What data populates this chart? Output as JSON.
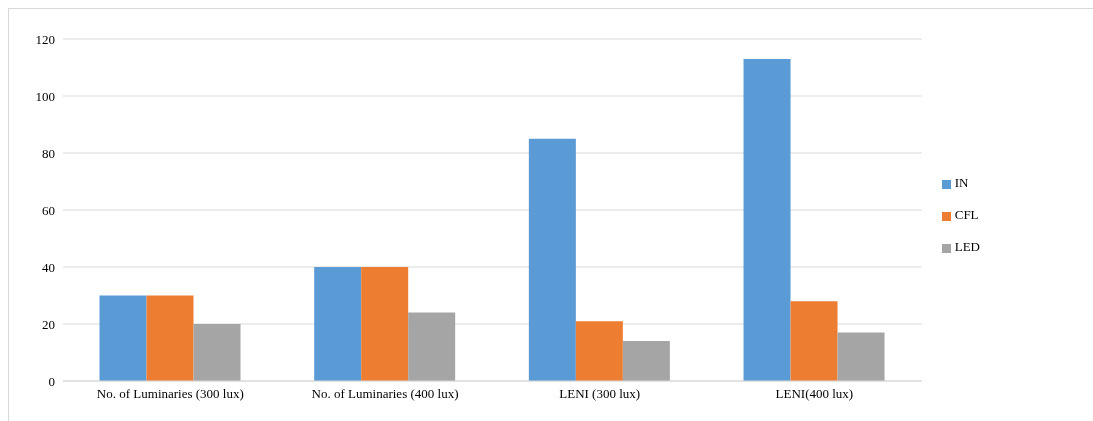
{
  "chart_data": {
    "type": "bar",
    "categories": [
      "No. of Luminaries (300 lux)",
      "No. of Luminaries (400 lux)",
      "LENI (300 lux)",
      "LENI(400 lux)"
    ],
    "series": [
      {
        "name": "IN",
        "color": "#5b9bd5",
        "values": [
          30,
          40,
          85,
          113
        ]
      },
      {
        "name": "CFL",
        "color": "#ed7d31",
        "values": [
          30,
          40,
          21,
          28
        ]
      },
      {
        "name": "LED",
        "color": "#a5a5a5",
        "values": [
          20,
          24,
          14,
          17
        ]
      }
    ],
    "ylim": [
      0,
      120
    ],
    "yticks": [
      0,
      20,
      40,
      60,
      80,
      100,
      120
    ],
    "grid": "y",
    "legend": "right"
  }
}
